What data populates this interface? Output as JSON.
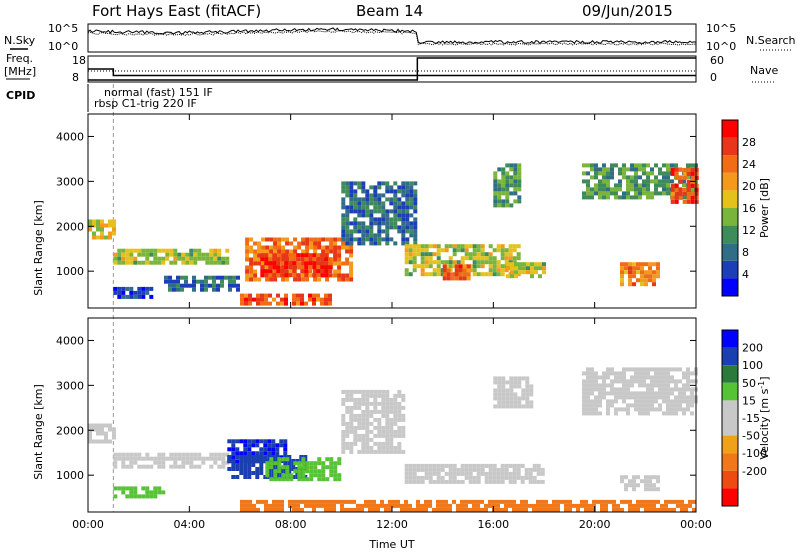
{
  "header": {
    "station": "Fort Hays East (fitACF)",
    "beam": "Beam 14",
    "date": "09/Jun/2015"
  },
  "summary": {
    "nsky_label": "N.Sky",
    "nsearch_label": "N.Search",
    "freq_label_1": "Freq.",
    "freq_label_2": "[MHz]",
    "nave_label": "Nave",
    "cpid_label": "CPID",
    "noise_ticks_left": [
      "10^5",
      "10^0"
    ],
    "noise_ticks_right": [
      "10^5",
      "10^0"
    ],
    "freq_ticks": [
      "18",
      "8"
    ],
    "nave_ticks": [
      "60",
      "0"
    ],
    "cpid_names": [
      "normal (fast) 151 IF",
      "rbsp C1-trig 220 IF"
    ],
    "cpid_switch_hour": 1.0,
    "nave_switch_hour": 13.0,
    "freq_levels_mhz": [
      13.0,
      10.5
    ]
  },
  "colors": {
    "power": [
      "#0000ff",
      "#1c3fb8",
      "#2f6e86",
      "#3e8c5a",
      "#79b43c",
      "#e4c11b",
      "#f39a1c",
      "#f06d16",
      "#e8361a",
      "#ff0000"
    ],
    "velocity": [
      "#0000ff",
      "#1a3fb0",
      "#2a7a3c",
      "#56c236",
      "#c8c8c8",
      "#c8c8c8",
      "#f0a11a",
      "#f0781a",
      "#ee4b12",
      "#ff0000"
    ]
  },
  "chart_data": [
    {
      "type": "heatmap",
      "name": "Power",
      "xlabel": "",
      "ylabel": "Slant Range [km]",
      "xlim_hours": [
        0,
        24
      ],
      "ylim_km": [
        180,
        4500
      ],
      "y_ticks": [
        1000,
        2000,
        3000,
        4000
      ],
      "colorbar_label": "Power [dB]",
      "colorbar_ticks": [
        4,
        8,
        12,
        16,
        20,
        24,
        28
      ],
      "colorbar_range": [
        0,
        32
      ],
      "features": [
        {
          "t0": 0.0,
          "t1": 1.0,
          "r0": 1750,
          "r1": 2150,
          "level": 18
        },
        {
          "t0": 1.0,
          "t1": 5.5,
          "r0": 1150,
          "r1": 1500,
          "level": 16
        },
        {
          "t0": 6.2,
          "t1": 10.4,
          "r0": 850,
          "r1": 1750,
          "level": 24
        },
        {
          "t0": 6.8,
          "t1": 9.5,
          "r0": 950,
          "r1": 1400,
          "level": 28
        },
        {
          "t0": 6.0,
          "t1": 9.5,
          "r0": 300,
          "r1": 500,
          "level": 26
        },
        {
          "t0": 1.0,
          "t1": 2.5,
          "r0": 450,
          "r1": 650,
          "level": 6
        },
        {
          "t0": 3.0,
          "t1": 6.0,
          "r0": 550,
          "r1": 900,
          "level": 8
        },
        {
          "t0": 10.0,
          "t1": 13.0,
          "r0": 1600,
          "r1": 3000,
          "level": 8
        },
        {
          "t0": 12.5,
          "t1": 17.0,
          "r0": 900,
          "r1": 1600,
          "level": 16
        },
        {
          "t0": 14.0,
          "t1": 15.0,
          "r0": 850,
          "r1": 1150,
          "level": 26
        },
        {
          "t0": 16.5,
          "t1": 18.0,
          "r0": 850,
          "r1": 1200,
          "level": 16
        },
        {
          "t0": 16.0,
          "t1": 17.0,
          "r0": 2500,
          "r1": 3400,
          "level": 12
        },
        {
          "t0": 19.5,
          "t1": 24.0,
          "r0": 2600,
          "r1": 3400,
          "level": 12
        },
        {
          "t0": 23.0,
          "t1": 24.0,
          "r0": 2500,
          "r1": 3300,
          "level": 26
        },
        {
          "t0": 21.0,
          "t1": 22.5,
          "r0": 700,
          "r1": 1200,
          "level": 22
        }
      ]
    },
    {
      "type": "heatmap",
      "name": "Velocity",
      "xlabel": "Time UT",
      "ylabel": "Slant Range [km]",
      "xlim_hours": [
        0,
        24
      ],
      "ylim_km": [
        180,
        4500
      ],
      "x_ticks": [
        "00:00",
        "04:00",
        "08:00",
        "12:00",
        "16:00",
        "20:00",
        "00:00"
      ],
      "y_ticks": [
        1000,
        2000,
        3000,
        4000
      ],
      "colorbar_label": "Velocity [m s",
      "colorbar_exp": "-1",
      "colorbar_close": "]",
      "colorbar_ticks": [
        "200",
        "100",
        "50",
        "15",
        "-15",
        "-50",
        "-100",
        "-200"
      ],
      "features": [
        {
          "t0": 0.0,
          "t1": 1.0,
          "r0": 1750,
          "r1": 2150,
          "level": 0
        },
        {
          "t0": 1.0,
          "t1": 5.5,
          "r0": 1150,
          "r1": 1500,
          "level": 0
        },
        {
          "t0": 5.5,
          "t1": 7.8,
          "r0": 1350,
          "r1": 1800,
          "level": 200
        },
        {
          "t0": 5.5,
          "t1": 8.5,
          "r0": 950,
          "r1": 1450,
          "level": 120
        },
        {
          "t0": 7.0,
          "t1": 10.0,
          "r0": 950,
          "r1": 1400,
          "level": 30
        },
        {
          "t0": 1.0,
          "t1": 3.0,
          "r0": 500,
          "r1": 750,
          "level": 30
        },
        {
          "t0": 10.0,
          "t1": 12.5,
          "r0": 1500,
          "r1": 2900,
          "level": 0
        },
        {
          "t0": 12.5,
          "t1": 18.0,
          "r0": 850,
          "r1": 1250,
          "level": 0
        },
        {
          "t0": 16.0,
          "t1": 17.5,
          "r0": 2500,
          "r1": 3200,
          "level": 0
        },
        {
          "t0": 19.5,
          "t1": 24.0,
          "r0": 2400,
          "r1": 3400,
          "level": 0
        },
        {
          "t0": 21.0,
          "t1": 22.5,
          "r0": 650,
          "r1": 1000,
          "level": 0
        },
        {
          "t0": 6.0,
          "t1": 24.0,
          "r0": 200,
          "r1": 450,
          "level": -60
        }
      ]
    }
  ]
}
